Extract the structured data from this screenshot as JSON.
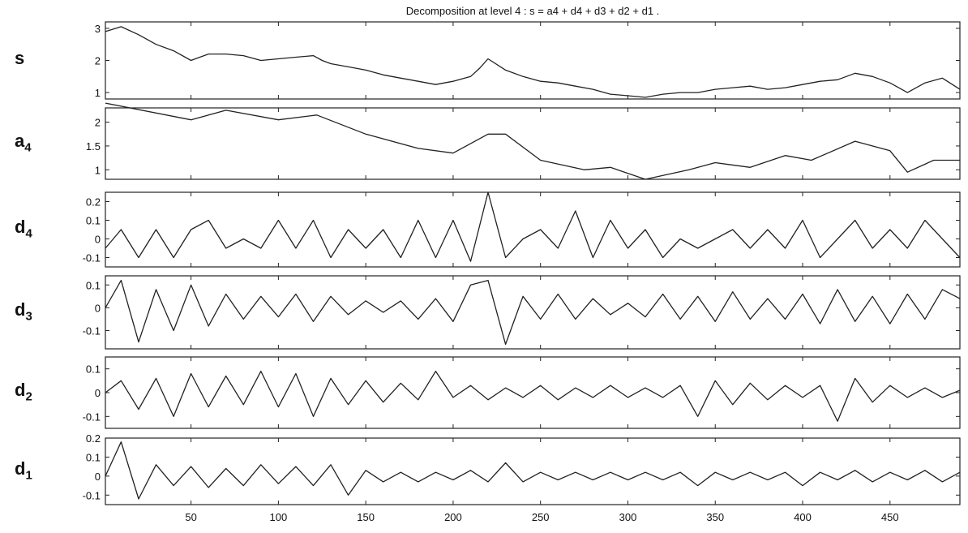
{
  "chart_data": {
    "type": "line",
    "title": "Decomposition at level 4 : s = a4 + d4 + d3 + d2 + d1 .",
    "xlim": [
      1,
      490
    ],
    "x_ticks": [
      50,
      100,
      150,
      200,
      250,
      300,
      350,
      400,
      450
    ],
    "x_tick_labels": [
      "50",
      "100",
      "150",
      "200",
      "250",
      "300",
      "350",
      "400",
      "450"
    ],
    "grid": false,
    "panels": [
      {
        "name": "s",
        "label_base": "s",
        "label_sub": "",
        "ylim": [
          0.8,
          3.2
        ],
        "yticks": [
          1,
          2,
          3
        ],
        "ytick_labels": [
          "1",
          "2",
          "3"
        ],
        "series": [
          {
            "x": [
              1,
              10,
              20,
              30,
              40,
              50,
              55,
              60,
              70,
              80,
              90,
              100,
              110,
              120,
              125,
              130,
              140,
              150,
              160,
              170,
              180,
              190,
              200,
              210,
              215,
              220,
              230,
              240,
              250,
              260,
              270,
              280,
              290,
              300,
              310,
              320,
              330,
              340,
              350,
              360,
              370,
              380,
              390,
              400,
              410,
              420,
              430,
              440,
              450,
              460,
              470,
              480,
              490
            ],
            "y": [
              2.9,
              3.05,
              2.8,
              2.5,
              2.3,
              2.0,
              2.1,
              2.2,
              2.2,
              2.15,
              2.0,
              2.05,
              2.1,
              2.15,
              2.0,
              1.9,
              1.8,
              1.7,
              1.55,
              1.45,
              1.35,
              1.25,
              1.35,
              1.5,
              1.75,
              2.05,
              1.7,
              1.5,
              1.35,
              1.3,
              1.2,
              1.1,
              0.95,
              0.9,
              0.85,
              0.95,
              1.0,
              1.0,
              1.1,
              1.15,
              1.2,
              1.1,
              1.15,
              1.25,
              1.35,
              1.4,
              1.6,
              1.5,
              1.3,
              1.0,
              1.3,
              1.45,
              1.1
            ]
          }
        ]
      },
      {
        "name": "a4",
        "label_base": "a",
        "label_sub": "4",
        "ylim": [
          0.8,
          2.3
        ],
        "yticks": [
          1,
          1.5,
          2
        ],
        "ytick_labels": [
          "1",
          "1.5",
          "2"
        ],
        "series": [
          {
            "x": [
              1,
              50,
              70,
              100,
              122,
              150,
              180,
              200,
              220,
              230,
              250,
              275,
              290,
              310,
              335,
              350,
              370,
              390,
              405,
              430,
              450,
              460,
              475,
              490
            ],
            "y": [
              2.4,
              2.05,
              2.25,
              2.05,
              2.15,
              1.75,
              1.45,
              1.35,
              1.75,
              1.75,
              1.2,
              1.0,
              1.05,
              0.8,
              1.0,
              1.15,
              1.05,
              1.3,
              1.2,
              1.6,
              1.4,
              0.95,
              1.2,
              1.2
            ]
          }
        ]
      },
      {
        "name": "d4",
        "label_base": "d",
        "label_sub": "4",
        "ylim": [
          -0.15,
          0.25
        ],
        "yticks": [
          -0.1,
          0,
          0.1,
          0.2
        ],
        "ytick_labels": [
          "-0.1",
          "0",
          "0.1",
          "0.2"
        ],
        "series": [
          {
            "x": [
              1,
              10,
              20,
              30,
              40,
              50,
              60,
              70,
              80,
              90,
              100,
              110,
              120,
              130,
              140,
              150,
              160,
              170,
              180,
              190,
              200,
              210,
              220,
              230,
              240,
              250,
              260,
              270,
              280,
              290,
              300,
              310,
              320,
              330,
              340,
              350,
              360,
              370,
              380,
              390,
              400,
              410,
              420,
              430,
              440,
              450,
              460,
              470,
              480,
              490
            ],
            "y": [
              -0.05,
              0.05,
              -0.1,
              0.05,
              -0.1,
              0.05,
              0.1,
              -0.05,
              0.0,
              -0.05,
              0.1,
              -0.05,
              0.1,
              -0.1,
              0.05,
              -0.05,
              0.05,
              -0.1,
              0.1,
              -0.1,
              0.1,
              -0.12,
              0.25,
              -0.1,
              0.0,
              0.05,
              -0.05,
              0.15,
              -0.1,
              0.1,
              -0.05,
              0.05,
              -0.1,
              0.0,
              -0.05,
              0.0,
              0.05,
              -0.05,
              0.05,
              -0.05,
              0.1,
              -0.1,
              0.0,
              0.1,
              -0.05,
              0.05,
              -0.05,
              0.1,
              0.0,
              -0.1
            ]
          }
        ]
      },
      {
        "name": "d3",
        "label_base": "d",
        "label_sub": "3",
        "ylim": [
          -0.18,
          0.14
        ],
        "yticks": [
          -0.1,
          0,
          0.1
        ],
        "ytick_labels": [
          "-0.1",
          "0",
          "0.1"
        ],
        "series": [
          {
            "x": [
              1,
              10,
              20,
              30,
              40,
              50,
              60,
              70,
              80,
              90,
              100,
              110,
              120,
              130,
              140,
              150,
              160,
              170,
              180,
              190,
              200,
              210,
              220,
              230,
              240,
              250,
              260,
              270,
              280,
              290,
              300,
              310,
              320,
              330,
              340,
              350,
              360,
              370,
              380,
              390,
              400,
              410,
              420,
              430,
              440,
              450,
              460,
              470,
              480,
              490
            ],
            "y": [
              0.0,
              0.12,
              -0.15,
              0.08,
              -0.1,
              0.1,
              -0.08,
              0.06,
              -0.05,
              0.05,
              -0.04,
              0.06,
              -0.06,
              0.05,
              -0.03,
              0.03,
              -0.02,
              0.03,
              -0.05,
              0.04,
              -0.06,
              0.1,
              0.12,
              -0.16,
              0.05,
              -0.05,
              0.06,
              -0.05,
              0.04,
              -0.03,
              0.02,
              -0.04,
              0.06,
              -0.05,
              0.05,
              -0.06,
              0.07,
              -0.05,
              0.04,
              -0.05,
              0.06,
              -0.07,
              0.08,
              -0.06,
              0.05,
              -0.07,
              0.06,
              -0.05,
              0.08,
              0.04
            ]
          }
        ]
      },
      {
        "name": "d2",
        "label_base": "d",
        "label_sub": "2",
        "ylim": [
          -0.15,
          0.15
        ],
        "yticks": [
          -0.1,
          0,
          0.1
        ],
        "ytick_labels": [
          "-0.1",
          "0",
          "0.1"
        ],
        "series": [
          {
            "x": [
              1,
              10,
              20,
              30,
              40,
              50,
              60,
              70,
              80,
              90,
              100,
              110,
              120,
              130,
              140,
              150,
              160,
              170,
              180,
              190,
              200,
              210,
              220,
              230,
              240,
              250,
              260,
              270,
              280,
              290,
              300,
              310,
              320,
              330,
              340,
              350,
              360,
              370,
              380,
              390,
              400,
              410,
              420,
              430,
              440,
              450,
              460,
              470,
              480,
              490
            ],
            "y": [
              0.0,
              0.05,
              -0.07,
              0.06,
              -0.1,
              0.08,
              -0.06,
              0.07,
              -0.05,
              0.09,
              -0.06,
              0.08,
              -0.1,
              0.06,
              -0.05,
              0.05,
              -0.04,
              0.04,
              -0.03,
              0.09,
              -0.02,
              0.03,
              -0.03,
              0.02,
              -0.02,
              0.03,
              -0.03,
              0.02,
              -0.02,
              0.03,
              -0.02,
              0.02,
              -0.02,
              0.03,
              -0.1,
              0.05,
              -0.05,
              0.04,
              -0.03,
              0.03,
              -0.02,
              0.03,
              -0.12,
              0.06,
              -0.04,
              0.03,
              -0.02,
              0.02,
              -0.02,
              0.01
            ]
          }
        ]
      },
      {
        "name": "d1",
        "label_base": "d",
        "label_sub": "1",
        "ylim": [
          -0.15,
          0.2
        ],
        "yticks": [
          -0.1,
          0,
          0.1,
          0.2
        ],
        "ytick_labels": [
          "-0.1",
          "0",
          "0.1",
          "0.2"
        ],
        "series": [
          {
            "x": [
              1,
              10,
              20,
              30,
              40,
              50,
              60,
              70,
              80,
              90,
              100,
              110,
              120,
              130,
              140,
              150,
              160,
              170,
              180,
              190,
              200,
              210,
              220,
              230,
              240,
              250,
              260,
              270,
              280,
              290,
              300,
              310,
              320,
              330,
              340,
              350,
              360,
              370,
              380,
              390,
              400,
              410,
              420,
              430,
              440,
              450,
              460,
              470,
              480,
              490
            ],
            "y": [
              0.0,
              0.18,
              -0.12,
              0.06,
              -0.05,
              0.05,
              -0.06,
              0.04,
              -0.05,
              0.06,
              -0.04,
              0.05,
              -0.05,
              0.06,
              -0.1,
              0.03,
              -0.03,
              0.02,
              -0.03,
              0.02,
              -0.02,
              0.03,
              -0.03,
              0.07,
              -0.03,
              0.02,
              -0.02,
              0.02,
              -0.02,
              0.02,
              -0.02,
              0.02,
              -0.02,
              0.02,
              -0.05,
              0.02,
              -0.02,
              0.02,
              -0.02,
              0.02,
              -0.05,
              0.02,
              -0.02,
              0.03,
              -0.03,
              0.02,
              -0.02,
              0.03,
              -0.03,
              0.02
            ]
          }
        ]
      }
    ]
  }
}
